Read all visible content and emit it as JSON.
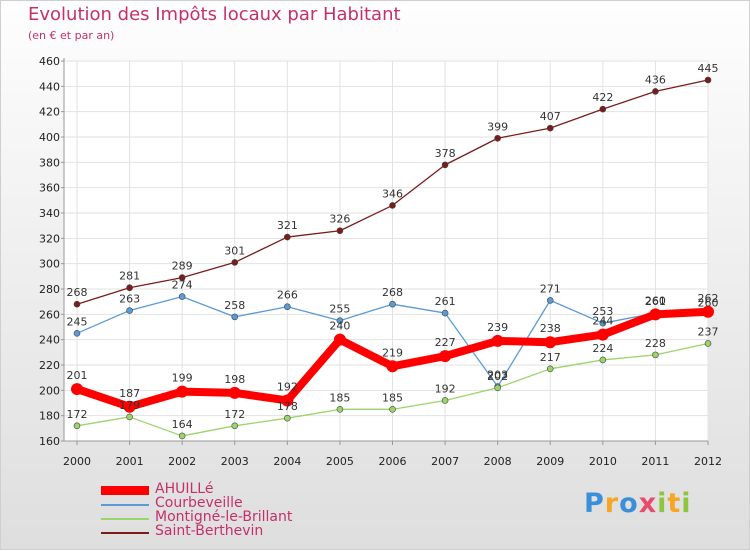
{
  "header": {
    "title": "Evolution des Impôts locaux par Habitant",
    "subtitle": "(en € et par an)"
  },
  "logo": {
    "text": [
      "P",
      "r",
      "o",
      "x",
      "i",
      "t",
      "i"
    ],
    "colors": [
      "#3a8fd8",
      "#f5a623",
      "#3a8fd8",
      "#e84c6a",
      "#8cc63f",
      "#f5a623",
      "#8cc63f"
    ]
  },
  "chart_data": {
    "type": "line",
    "x": [
      "2000",
      "2001",
      "2002",
      "2003",
      "2004",
      "2005",
      "2006",
      "2007",
      "2008",
      "2009",
      "2010",
      "2011",
      "2012"
    ],
    "ylim": [
      160,
      460
    ],
    "yticks": [
      160,
      180,
      200,
      220,
      240,
      260,
      280,
      300,
      320,
      340,
      360,
      380,
      400,
      420,
      440,
      460
    ],
    "grid": true,
    "legend_position": "bottom-left",
    "series": [
      {
        "name": "Saint-Berthevin",
        "color": "#7a1c1c",
        "values": [
          268,
          281,
          289,
          301,
          321,
          326,
          346,
          378,
          399,
          407,
          422,
          436,
          445
        ],
        "labels": [
          "268",
          "281",
          "289",
          "301",
          "321",
          "326",
          "346",
          "378",
          "399",
          "407",
          "422",
          "436",
          "445"
        ]
      },
      {
        "name": "Courbeveille",
        "color": "#5b9bd5",
        "values": [
          245,
          263,
          274,
          258,
          266,
          255,
          268,
          261,
          203,
          271,
          253,
          261,
          260
        ],
        "labels": [
          "245",
          "263",
          "274",
          "258",
          "266",
          "255",
          "268",
          "261",
          "203",
          "271",
          "253",
          "261",
          "260"
        ]
      },
      {
        "name": "Montigné-le-Brillant",
        "color": "#9bd46a",
        "values": [
          172,
          179,
          164,
          172,
          178,
          185,
          185,
          192,
          202,
          217,
          224,
          228,
          237
        ],
        "labels": [
          "172",
          "179",
          "164",
          "172",
          "178",
          "185",
          "185",
          "192",
          "202",
          "217",
          "224",
          "228",
          "237"
        ]
      },
      {
        "name": "AHUILLé",
        "color": "#ff0000",
        "values": [
          201,
          187,
          199,
          198,
          192,
          240,
          219,
          227,
          239,
          238,
          244,
          260,
          262
        ],
        "labels": [
          "201",
          "187",
          "199",
          "198",
          "192",
          "240",
          "219",
          "227",
          "239",
          "238",
          "244",
          "260",
          "262"
        ]
      }
    ],
    "legend_order": [
      "AHUILLé",
      "Courbeveille",
      "Montigné-le-Brillant",
      "Saint-Berthevin"
    ]
  }
}
